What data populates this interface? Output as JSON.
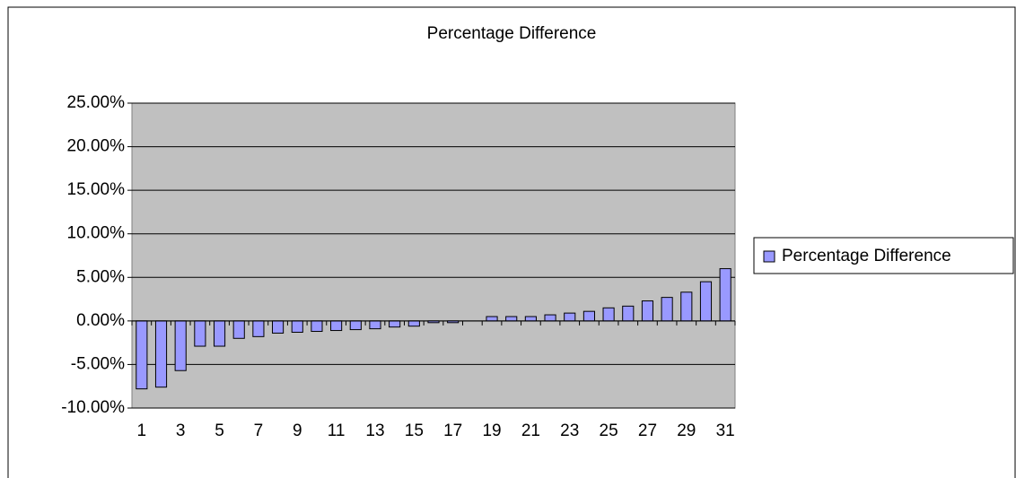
{
  "chart_data": {
    "type": "bar",
    "title": "Percentage Difference",
    "categories": [
      "1",
      null,
      "3",
      null,
      "5",
      null,
      "7",
      null,
      "9",
      null,
      "11",
      null,
      "13",
      null,
      "15",
      null,
      "17",
      null,
      "19",
      null,
      "21",
      null,
      "23",
      null,
      "25",
      null,
      "27",
      null,
      "29",
      null,
      "31"
    ],
    "series": [
      {
        "name": "Percentage Difference",
        "color": "#9999ff",
        "values": [
          -7.8,
          -7.6,
          -5.7,
          -2.9,
          -2.9,
          -2.0,
          -1.8,
          -1.4,
          -1.3,
          -1.2,
          -1.1,
          -1.0,
          -0.9,
          -0.7,
          -0.6,
          -0.2,
          -0.2,
          0,
          0.5,
          0.5,
          0.5,
          0.7,
          0.9,
          1.1,
          1.5,
          1.7,
          2.3,
          2.7,
          3.3,
          4.5,
          6.0
        ]
      }
    ],
    "ylim": [
      -10,
      25
    ],
    "yticks": [
      {
        "value": -10,
        "label": "-10.00%"
      },
      {
        "value": -5,
        "label": "-5.00%"
      },
      {
        "value": 0,
        "label": "0.00%"
      },
      {
        "value": 5,
        "label": "5.00%"
      },
      {
        "value": 10,
        "label": "10.00%"
      },
      {
        "value": 15,
        "label": "15.00%"
      },
      {
        "value": 20,
        "label": "20.00%"
      },
      {
        "value": 25,
        "label": "25.00%"
      }
    ],
    "grid": true,
    "plot_background": "#c0c0c0",
    "legend": "right"
  }
}
